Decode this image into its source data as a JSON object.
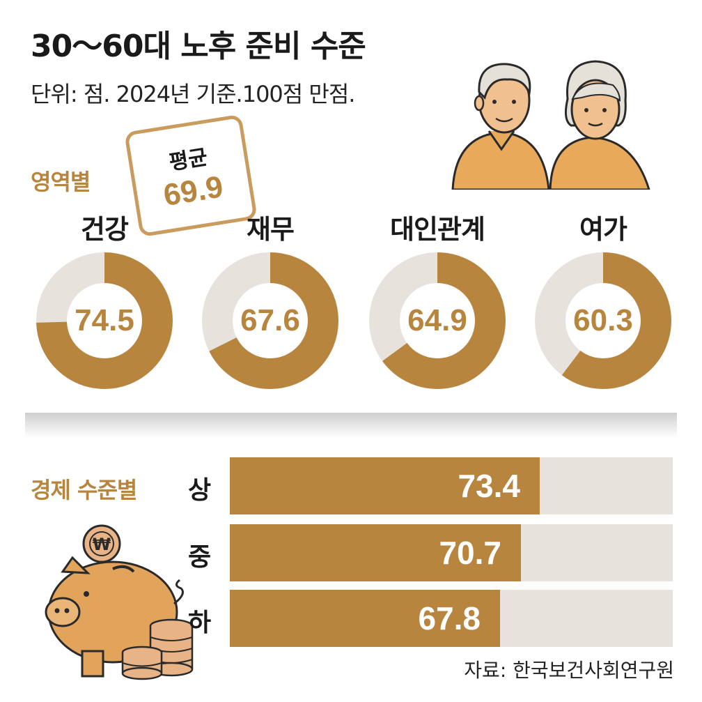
{
  "header": {
    "title": "30～60대 노후 준비 수준",
    "subtitle": "단위: 점. 2024년 기준.100점 만점."
  },
  "average": {
    "label": "평균",
    "value": "69.9"
  },
  "sections": {
    "by_domain": "영역별",
    "by_economic": "경제 수준별"
  },
  "source": "자료: 한국보건사회연구원",
  "colors": {
    "accent": "#b8853f",
    "track": "#e7e3dc",
    "border": "#c99b5c"
  },
  "chart_data": [
    {
      "type": "pie",
      "categories": [
        "건강",
        "재무",
        "대인관계",
        "여가"
      ],
      "values": [
        74.5,
        67.6,
        64.9,
        60.3
      ],
      "max": 100
    },
    {
      "type": "bar",
      "orientation": "horizontal",
      "categories": [
        "상",
        "중",
        "하"
      ],
      "values": [
        73.4,
        70.7,
        67.8
      ],
      "max": 100
    }
  ]
}
